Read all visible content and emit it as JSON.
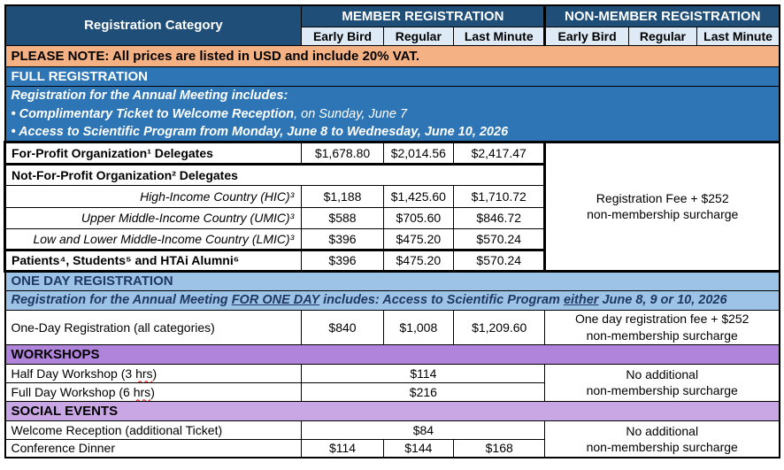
{
  "header": {
    "category": "Registration Category",
    "member": "MEMBER REGISTRATION",
    "nonmember": "NON-MEMBER REGISTRATION",
    "member_cols": [
      "Early Bird",
      "Regular",
      "Last Minute"
    ],
    "nonmember_cols": [
      "Early Bird",
      "Regular",
      "Last Minute"
    ]
  },
  "note": "PLEASE NOTE: All prices are listed in USD and include 20% VAT.",
  "full": {
    "band": "FULL REGISTRATION",
    "info_heading": "Registration for the Annual Meeting includes:",
    "bullet1_bold": "• Complimentary Ticket to Welcome Reception",
    "bullet1_regular": ", on Sunday, June 7",
    "bullet2": "• Access to Scientific Program from Monday, June 8 to Wednesday, June 10, 2026",
    "for_profit": {
      "label": "For-Profit Organization¹ Delegates",
      "prices": [
        "$1,678.80",
        "$2,014.56",
        "$2,417.47"
      ]
    },
    "nfp_heading": "Not-For-Profit Organization² Delegates",
    "nfp_rows": [
      {
        "label": "High-Income Country (HIC)³",
        "prices": [
          "$1,188",
          "$1,425.60",
          "$1,710.72"
        ]
      },
      {
        "label": "Upper Middle-Income Country (UMIC)³",
        "prices": [
          "$588",
          "$705.60",
          "$846.72"
        ]
      },
      {
        "label": "Low and Lower Middle-Income Country (LMIC)³",
        "prices": [
          "$396",
          "$475.20",
          "$570.24"
        ]
      }
    ],
    "patients": {
      "label": "Patients⁴, Students⁵ and HTAi Alumni⁶",
      "prices": [
        "$396",
        "$475.20",
        "$570.24"
      ]
    },
    "surcharge_line1": "Registration Fee + $252",
    "surcharge_line2": "non-membership surcharge"
  },
  "one_day": {
    "band": "ONE DAY REGISTRATION",
    "info_pre": "Registration for the Annual Meeting ",
    "info_underline1": "FOR ONE DAY",
    "info_mid": " includes: Access to Scientific Program ",
    "info_underline2": "either",
    "info_post": " June 8, 9 or 10, 2026",
    "row": {
      "label": "One-Day Registration (all categories)",
      "prices": [
        "$840",
        "$1,008",
        "$1,209.60"
      ]
    },
    "surcharge_line1": "One day registration fee + $252",
    "surcharge_line2": "non-membership surcharge"
  },
  "workshops": {
    "band": "WORKSHOPS",
    "rows": [
      {
        "label_pre": "Half Day Workshop (3 ",
        "label_hrs": "hrs",
        "label_post": ")",
        "price": "$114"
      },
      {
        "label_pre": "Full Day Workshop (6 ",
        "label_hrs": "hrs",
        "label_post": ")",
        "price": "$216"
      }
    ],
    "surcharge_line1": "No additional",
    "surcharge_line2": "non-membership surcharge"
  },
  "social": {
    "band": "SOCIAL EVENTS",
    "welcome": {
      "label": "Welcome Reception (additional Ticket)",
      "price": "$84"
    },
    "dinner": {
      "label": "Conference Dinner",
      "prices": [
        "$114",
        "$144",
        "$168"
      ]
    },
    "surcharge_line1": "No additional",
    "surcharge_line2": "non-membership surcharge"
  },
  "colors": {
    "header_navy": "#1F4E79",
    "subheader_blue": "#DEEBF7",
    "note_orange": "#F4B183",
    "full_reg_blue": "#2E75B6",
    "one_day_blue": "#9DC3E6",
    "workshops_purple": "#B184DB",
    "social_purple": "#C9A7E5"
  }
}
